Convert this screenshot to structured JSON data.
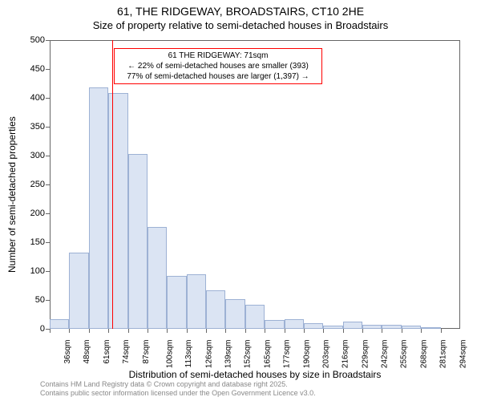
{
  "title_main": "61, THE RIDGEWAY, BROADSTAIRS, CT10 2HE",
  "title_sub": "Size of property relative to semi-detached houses in Broadstairs",
  "y_axis_label": "Number of semi-detached properties",
  "x_axis_label": "Distribution of semi-detached houses by size in Broadstairs",
  "footer_line1": "Contains HM Land Registry data © Crown copyright and database right 2025.",
  "footer_line2": "Contains public sector information licensed under the Open Government Licence v3.0.",
  "annotation": {
    "line1": "61 THE RIDGEWAY: 71sqm",
    "line2": "← 22% of semi-detached houses are smaller (393)",
    "line3": "77% of semi-detached houses are larger (1,397) →"
  },
  "chart": {
    "type": "histogram",
    "ylim": [
      0,
      500
    ],
    "yticks": [
      0,
      50,
      100,
      150,
      200,
      250,
      300,
      350,
      400,
      450,
      500
    ],
    "xticks": [
      "36sqm",
      "48sqm",
      "61sqm",
      "74sqm",
      "87sqm",
      "100sqm",
      "113sqm",
      "126sqm",
      "139sqm",
      "152sqm",
      "165sqm",
      "177sqm",
      "190sqm",
      "203sqm",
      "216sqm",
      "229sqm",
      "242sqm",
      "255sqm",
      "268sqm",
      "281sqm",
      "294sqm"
    ],
    "values": [
      17,
      132,
      418,
      408,
      303,
      177,
      92,
      95,
      67,
      51,
      42,
      15,
      16,
      10,
      5,
      12,
      7,
      7,
      6,
      3,
      0
    ],
    "bar_fill": "#dbe4f3",
    "bar_stroke": "#9db1d4",
    "marker_color": "#ff0000",
    "marker_x_sqm": 71,
    "x_min": 30,
    "x_max": 300,
    "background_color": "#ffffff",
    "axis_color": "#666666",
    "title_fontsize": 14,
    "label_fontsize": 12,
    "tick_fontsize": 11
  }
}
